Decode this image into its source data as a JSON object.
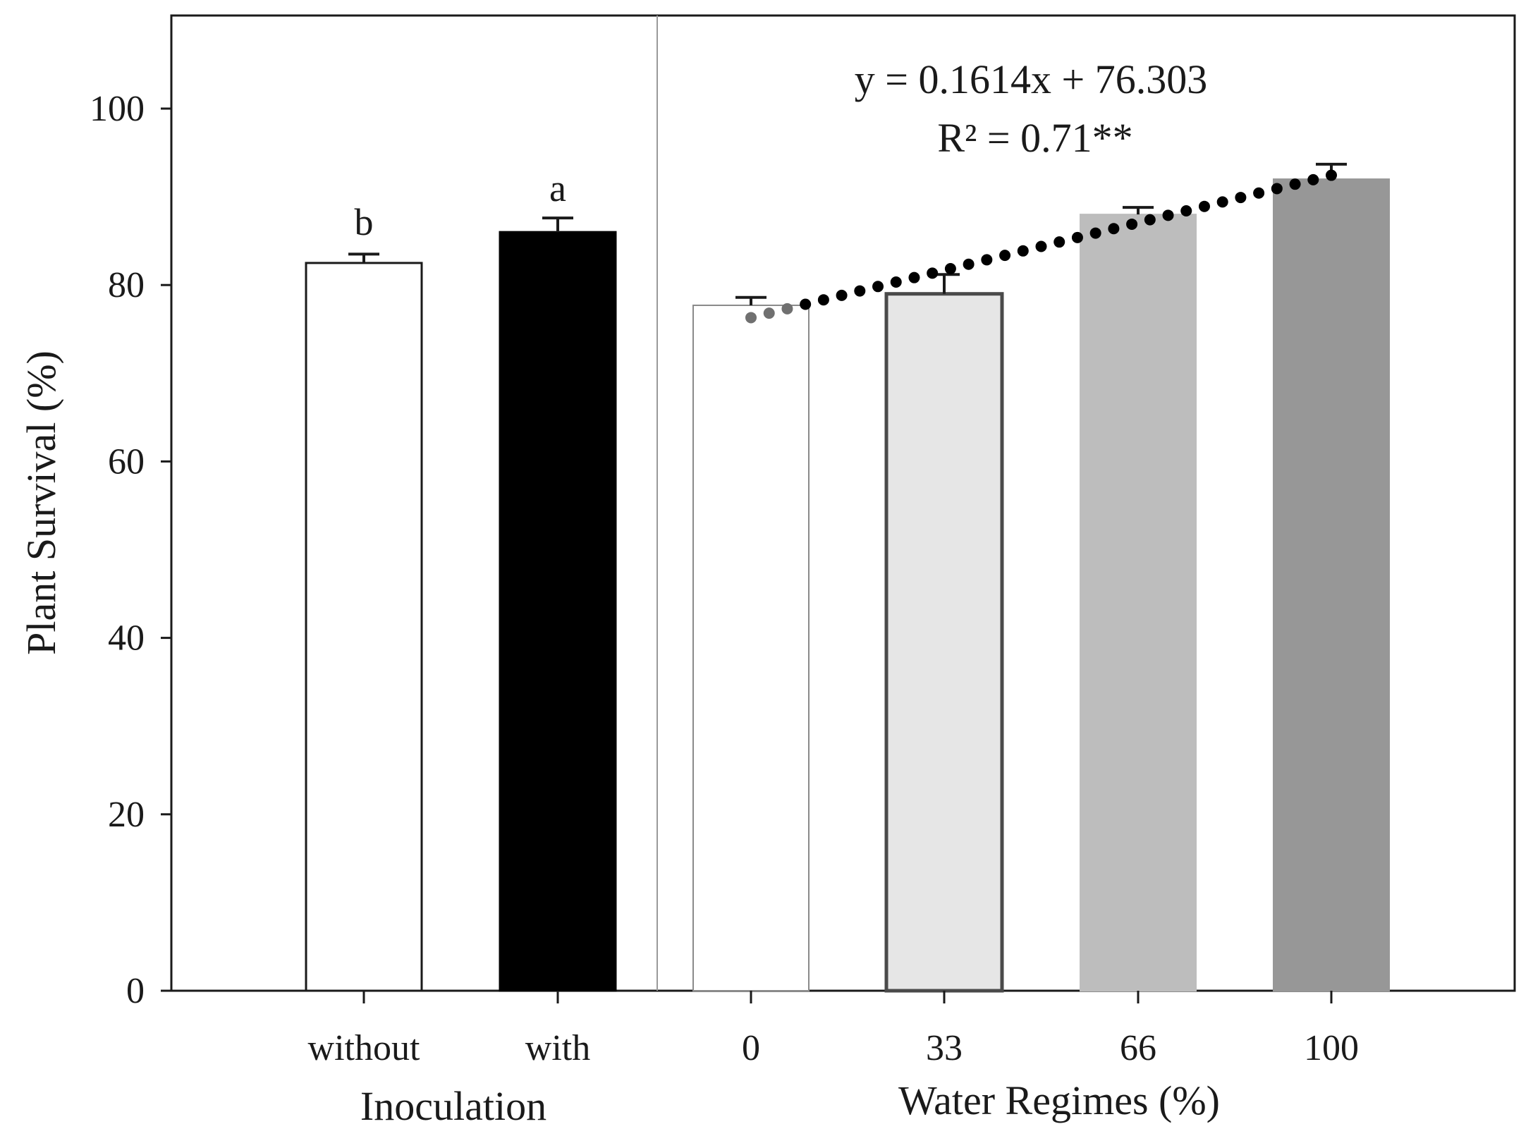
{
  "chart_data": {
    "type": "bar",
    "ylabel": "Plant Survival (%)",
    "ylim": [
      0,
      110
    ],
    "yticks": [
      0,
      20,
      40,
      60,
      80,
      100
    ],
    "ytick_labels": [
      "0",
      "20",
      "40",
      "60",
      "80",
      "100"
    ],
    "panels": [
      {
        "xlabel": "Inoculation",
        "categories": [
          "without",
          "with"
        ],
        "values": [
          82.5,
          86
        ],
        "errors": [
          1.0,
          1.6
        ],
        "fill_colors": [
          "#ffffff",
          "#000000"
        ],
        "letters": [
          "b",
          "a"
        ]
      },
      {
        "xlabel": "Water Regimes (%)",
        "categories": [
          "0",
          "33",
          "66",
          "100"
        ],
        "x_values": [
          0,
          33,
          66,
          100
        ],
        "values": [
          77.7,
          79,
          88,
          92
        ],
        "errors": [
          0.9,
          2.2,
          0.8,
          1.7
        ],
        "fill_colors": [
          "#ffffff",
          "#e6e6e6",
          "#bdbdbd",
          "#979797"
        ],
        "trendline": {
          "slope": 0.1614,
          "intercept": 76.303,
          "equation": "y = 0.1614x + 76.303",
          "r2": "R² = 0.71**"
        }
      }
    ]
  }
}
